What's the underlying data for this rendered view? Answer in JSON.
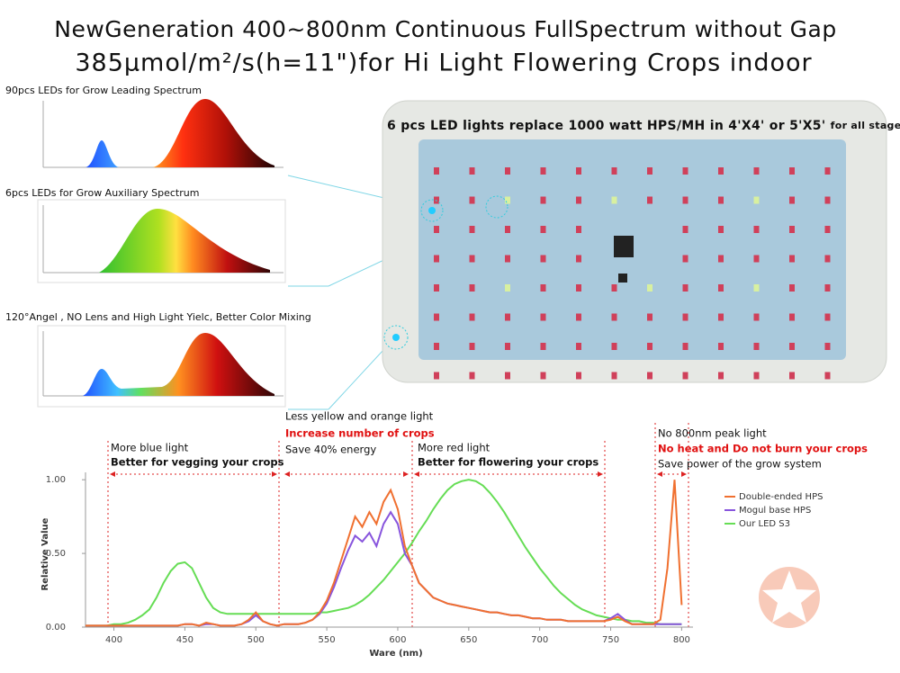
{
  "header": {
    "title": "NewGeneration 400~800nm Continuous FullSpectrum  without Gap",
    "subtitle": "385μmol/m²/s(h=11\")for Hi Light Flowering Crops indoor"
  },
  "panels": [
    {
      "caption": "90pcs LEDs for Grow Leading Spectrum"
    },
    {
      "caption": "6pcs LEDs for Grow Auxiliary Spectrum"
    },
    {
      "caption": "120°Angel , NO Lens and High Light Yielc, Better Color Mixing"
    }
  ],
  "product": {
    "caption": "6 pcs LED lights replace 1000 watt HPS/MH in 4'X4' or 5'X5'",
    "caption_note": "for all stage"
  },
  "chart_data": {
    "type": "line",
    "xlabel": "Ware (nm)",
    "ylabel": "Relative Value",
    "xlim": [
      380,
      808
    ],
    "ylim": [
      0,
      1.05
    ],
    "xticks": [
      400,
      450,
      500,
      550,
      600,
      650,
      700,
      750,
      800
    ],
    "yticks": [
      {
        "value": 0,
        "label": "0.00"
      },
      {
        "value": 0.5,
        "label": "0.50"
      },
      {
        "value": 1,
        "label": "1.00"
      }
    ],
    "legend": "right",
    "x": [
      380,
      385,
      390,
      395,
      400,
      405,
      410,
      415,
      420,
      425,
      430,
      435,
      440,
      445,
      450,
      455,
      460,
      465,
      470,
      475,
      480,
      485,
      490,
      495,
      500,
      505,
      510,
      515,
      520,
      525,
      530,
      535,
      540,
      545,
      550,
      555,
      560,
      565,
      570,
      575,
      580,
      585,
      590,
      595,
      600,
      605,
      610,
      615,
      620,
      625,
      630,
      635,
      640,
      645,
      650,
      655,
      660,
      665,
      670,
      675,
      680,
      685,
      690,
      695,
      700,
      705,
      710,
      715,
      720,
      725,
      730,
      735,
      740,
      745,
      750,
      755,
      760,
      765,
      770,
      775,
      780,
      785,
      790,
      795,
      800
    ],
    "series": [
      {
        "name": "Double-ended HPS",
        "color": "#f07030",
        "values": [
          0.01,
          0.01,
          0.01,
          0.01,
          0.01,
          0.01,
          0.01,
          0.01,
          0.01,
          0.01,
          0.01,
          0.01,
          0.01,
          0.01,
          0.02,
          0.02,
          0.01,
          0.03,
          0.02,
          0.01,
          0.01,
          0.01,
          0.02,
          0.05,
          0.1,
          0.04,
          0.02,
          0.01,
          0.02,
          0.02,
          0.02,
          0.03,
          0.05,
          0.1,
          0.18,
          0.3,
          0.45,
          0.6,
          0.75,
          0.68,
          0.78,
          0.7,
          0.85,
          0.93,
          0.8,
          0.55,
          0.42,
          0.3,
          0.25,
          0.2,
          0.18,
          0.16,
          0.15,
          0.14,
          0.13,
          0.12,
          0.11,
          0.1,
          0.1,
          0.09,
          0.08,
          0.08,
          0.07,
          0.06,
          0.06,
          0.05,
          0.05,
          0.05,
          0.04,
          0.04,
          0.04,
          0.04,
          0.04,
          0.04,
          0.05,
          0.07,
          0.04,
          0.02,
          0.02,
          0.02,
          0.02,
          0.05,
          0.4,
          1.0,
          0.15
        ]
      },
      {
        "name": "Mogul base HPS",
        "color": "#8855dd",
        "values": [
          0.01,
          0.01,
          0.01,
          0.01,
          0.01,
          0.01,
          0.01,
          0.01,
          0.01,
          0.01,
          0.01,
          0.01,
          0.01,
          0.01,
          0.02,
          0.02,
          0.01,
          0.02,
          0.02,
          0.01,
          0.01,
          0.01,
          0.02,
          0.04,
          0.08,
          0.04,
          0.02,
          0.01,
          0.02,
          0.02,
          0.02,
          0.03,
          0.05,
          0.09,
          0.16,
          0.27,
          0.4,
          0.52,
          0.62,
          0.58,
          0.64,
          0.55,
          0.7,
          0.78,
          0.7,
          0.5,
          0.42,
          0.3,
          0.25,
          0.2,
          0.18,
          0.16,
          0.15,
          0.14,
          0.13,
          0.12,
          0.11,
          0.1,
          0.1,
          0.09,
          0.08,
          0.08,
          0.07,
          0.06,
          0.06,
          0.05,
          0.05,
          0.05,
          0.04,
          0.04,
          0.04,
          0.04,
          0.04,
          0.04,
          0.06,
          0.09,
          0.05,
          0.02,
          0.02,
          0.02,
          0.02,
          0.02,
          0.02,
          0.02,
          0.02
        ]
      },
      {
        "name": "Our LED S3",
        "color": "#66dd55",
        "values": [
          0.01,
          0.01,
          0.01,
          0.01,
          0.02,
          0.02,
          0.03,
          0.05,
          0.08,
          0.12,
          0.2,
          0.3,
          0.38,
          0.43,
          0.44,
          0.4,
          0.3,
          0.2,
          0.13,
          0.1,
          0.09,
          0.09,
          0.09,
          0.09,
          0.09,
          0.09,
          0.09,
          0.09,
          0.09,
          0.09,
          0.09,
          0.09,
          0.09,
          0.1,
          0.1,
          0.11,
          0.12,
          0.13,
          0.15,
          0.18,
          0.22,
          0.27,
          0.32,
          0.38,
          0.44,
          0.5,
          0.57,
          0.65,
          0.72,
          0.8,
          0.87,
          0.93,
          0.97,
          0.99,
          1.0,
          0.99,
          0.96,
          0.91,
          0.85,
          0.78,
          0.7,
          0.62,
          0.54,
          0.47,
          0.4,
          0.34,
          0.28,
          0.23,
          0.19,
          0.15,
          0.12,
          0.1,
          0.08,
          0.07,
          0.06,
          0.05,
          0.05,
          0.04,
          0.04,
          0.03,
          0.03,
          0.02,
          0.02,
          0.02,
          0.02
        ]
      }
    ],
    "annotations": [
      {
        "lines": [
          "More blue light",
          "Better  for vegging your crops"
        ]
      },
      {
        "lines": [
          "Less yellow and orange light",
          "Increase number of crops",
          "Save 40% energy"
        ]
      },
      {
        "lines": [
          "More red light",
          "Better  for flowering your crops"
        ]
      },
      {
        "lines": [
          "No 800nm peak light",
          "No heat and Do not burn your crops",
          "Save power of the grow system"
        ]
      }
    ]
  }
}
